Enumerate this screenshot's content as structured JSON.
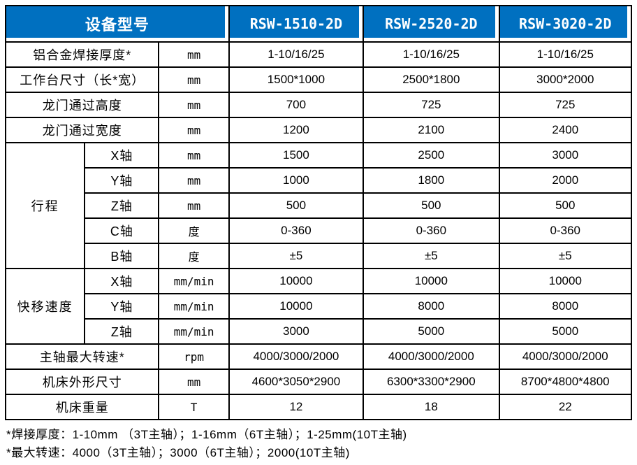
{
  "colors": {
    "header_bg": "#0070c0",
    "header_text": "#ffffff",
    "grid": "#000000",
    "body_bg": "#ffffff"
  },
  "header": {
    "device_label": "设备型号",
    "models": [
      "RSW-1510-2D",
      "RSW-2520-2D",
      "RSW-3020-2D"
    ]
  },
  "rows": [
    {
      "label": "铝合金焊接厚度*",
      "unit": "mm",
      "values": [
        "1-10/16/25",
        "1-10/16/25",
        "1-10/16/25"
      ]
    },
    {
      "label": "工作台尺寸（长*宽）",
      "unit": "mm",
      "values": [
        "1500*1000",
        "2500*1800",
        "3000*2000"
      ]
    },
    {
      "label": "龙门通过高度",
      "unit": "mm",
      "values": [
        "700",
        "725",
        "725"
      ]
    },
    {
      "label": "龙门通过宽度",
      "unit": "mm",
      "values": [
        "1200",
        "2100",
        "2400"
      ]
    },
    {
      "group": "行程",
      "group_rows": 5,
      "label": "X轴",
      "unit": "mm",
      "values": [
        "1500",
        "2500",
        "3000"
      ]
    },
    {
      "in_group": true,
      "label": "Y轴",
      "unit": "mm",
      "values": [
        "1000",
        "1800",
        "2000"
      ]
    },
    {
      "in_group": true,
      "label": "Z轴",
      "unit": "mm",
      "values": [
        "500",
        "500",
        "500"
      ]
    },
    {
      "in_group": true,
      "label": "C轴",
      "unit": "度",
      "values": [
        "0-360",
        "0-360",
        "0-360"
      ]
    },
    {
      "in_group": true,
      "label": "B轴",
      "unit": "度",
      "values": [
        "±5",
        "±5",
        "±5"
      ]
    },
    {
      "group": "快移速度",
      "group_rows": 3,
      "label": "X轴",
      "unit": "mm/min",
      "values": [
        "10000",
        "10000",
        "10000"
      ]
    },
    {
      "in_group": true,
      "label": "Y轴",
      "unit": "mm/min",
      "values": [
        "10000",
        "8000",
        "8000"
      ]
    },
    {
      "in_group": true,
      "label": "Z轴",
      "unit": "mm/min",
      "values": [
        "3000",
        "5000",
        "5000"
      ]
    },
    {
      "label": "主轴最大转速*",
      "unit": "rpm",
      "values": [
        "4000/3000/2000",
        "4000/3000/2000",
        "4000/3000/2000"
      ]
    },
    {
      "label": "机床外形尺寸",
      "unit": "mm",
      "values": [
        "4600*3050*2900",
        "6300*3300*2900",
        "8700*4800*4800"
      ]
    },
    {
      "label": "机床重量",
      "unit": "T",
      "values": [
        "12",
        "18",
        "22"
      ]
    }
  ],
  "footnotes": [
    "*焊接厚度：1-10mm （3T主轴）；1-16mm（6T主轴）；1-25mm(10T主轴)",
    "*最大转速：4000（3T主轴）；3000（6T主轴）；2000(10T主轴)"
  ]
}
